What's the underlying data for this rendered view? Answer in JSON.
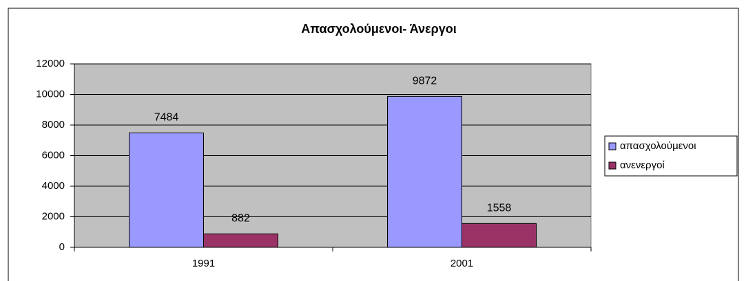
{
  "chart_data": {
    "type": "bar",
    "title": "Απασχολούμενοι- Άνεργοι",
    "categories": [
      "1991",
      "2001"
    ],
    "series": [
      {
        "name": "απασχολούμενοι",
        "color": "#9999ff",
        "values": [
          7484,
          9872
        ]
      },
      {
        "name": "ανενεργοί",
        "color": "#993366",
        "values": [
          882,
          1558
        ]
      }
    ],
    "ylim": [
      0,
      12000
    ],
    "yticks": [
      0,
      2000,
      4000,
      6000,
      8000,
      10000,
      12000
    ],
    "grid": true,
    "legend": "right"
  }
}
